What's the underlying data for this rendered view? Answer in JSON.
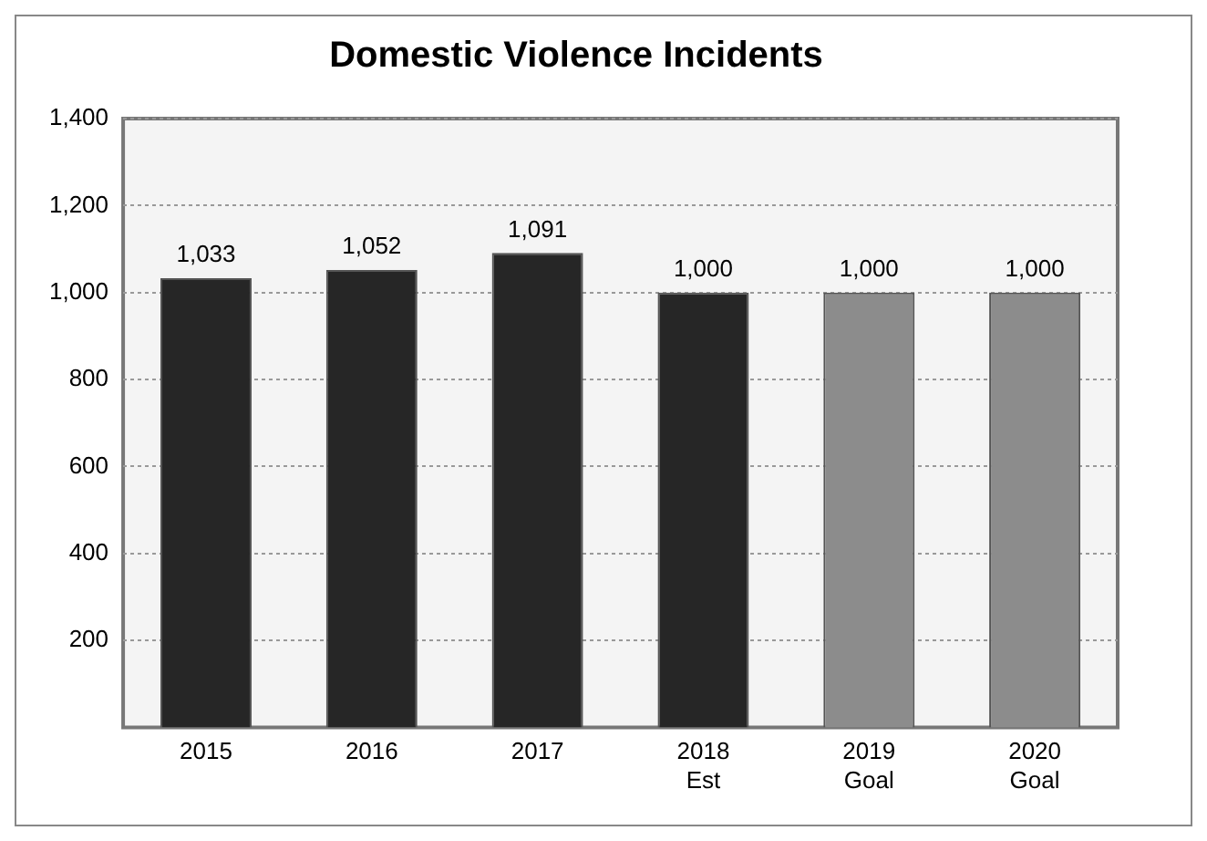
{
  "chart_data": {
    "type": "bar",
    "title": "Domestic Violence Incidents",
    "categories": [
      "2015",
      "2016",
      "2017",
      "2018\nEst",
      "2019\nGoal",
      "2020\nGoal"
    ],
    "values": [
      1033,
      1052,
      1091,
      1000,
      1000,
      1000
    ],
    "value_labels": [
      "1,033",
      "1,052",
      "1,091",
      "1,000",
      "1,000",
      "1,000"
    ],
    "colors": [
      "#262626",
      "#262626",
      "#262626",
      "#262626",
      "#8c8c8c",
      "#8c8c8c"
    ],
    "ylim": [
      0,
      1400
    ],
    "yticks": [
      200,
      400,
      600,
      800,
      {
        "value": 1000,
        "label": "1,000"
      },
      {
        "value": 1200,
        "label": "1,200"
      },
      {
        "value": 1400,
        "label": "1,400"
      }
    ],
    "grid": "y"
  }
}
